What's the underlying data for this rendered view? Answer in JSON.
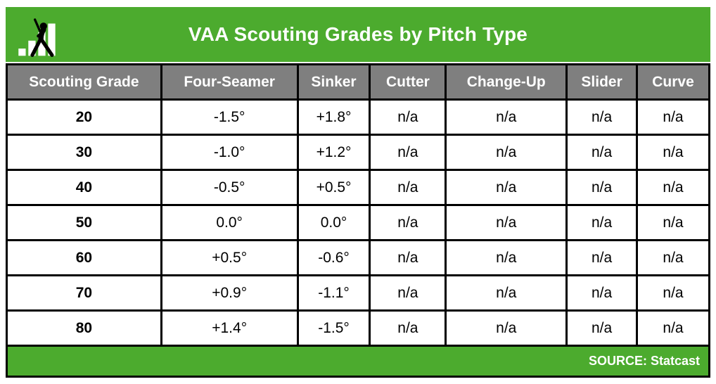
{
  "colors": {
    "green": "#4cab2e",
    "header_gray": "#7f7f7f",
    "border_black": "#000000",
    "text_black": "#000000",
    "text_white": "#ffffff"
  },
  "header": {
    "logo_icon": "batter-bar-chart-logo"
  },
  "chart_data": {
    "type": "table",
    "title": "VAA Scouting Grades by Pitch Type",
    "columns": [
      "Scouting Grade",
      "Four-Seamer",
      "Sinker",
      "Cutter",
      "Change-Up",
      "Slider",
      "Curve"
    ],
    "rows": [
      [
        "20",
        "-1.5°",
        "+1.8°",
        "n/a",
        "n/a",
        "n/a",
        "n/a"
      ],
      [
        "30",
        "-1.0°",
        "+1.2°",
        "n/a",
        "n/a",
        "n/a",
        "n/a"
      ],
      [
        "40",
        "-0.5°",
        "+0.5°",
        "n/a",
        "n/a",
        "n/a",
        "n/a"
      ],
      [
        "50",
        "0.0°",
        "0.0°",
        "n/a",
        "n/a",
        "n/a",
        "n/a"
      ],
      [
        "60",
        "+0.5°",
        "-0.6°",
        "n/a",
        "n/a",
        "n/a",
        "n/a"
      ],
      [
        "70",
        "+0.9°",
        "-1.1°",
        "n/a",
        "n/a",
        "n/a",
        "n/a"
      ],
      [
        "80",
        "+1.4°",
        "-1.5°",
        "n/a",
        "n/a",
        "n/a",
        "n/a"
      ]
    ],
    "source_note": "SOURCE: Statcast",
    "layout_hints": {
      "first_column_bold": true,
      "header_row_background": "gray",
      "grid": true
    }
  }
}
